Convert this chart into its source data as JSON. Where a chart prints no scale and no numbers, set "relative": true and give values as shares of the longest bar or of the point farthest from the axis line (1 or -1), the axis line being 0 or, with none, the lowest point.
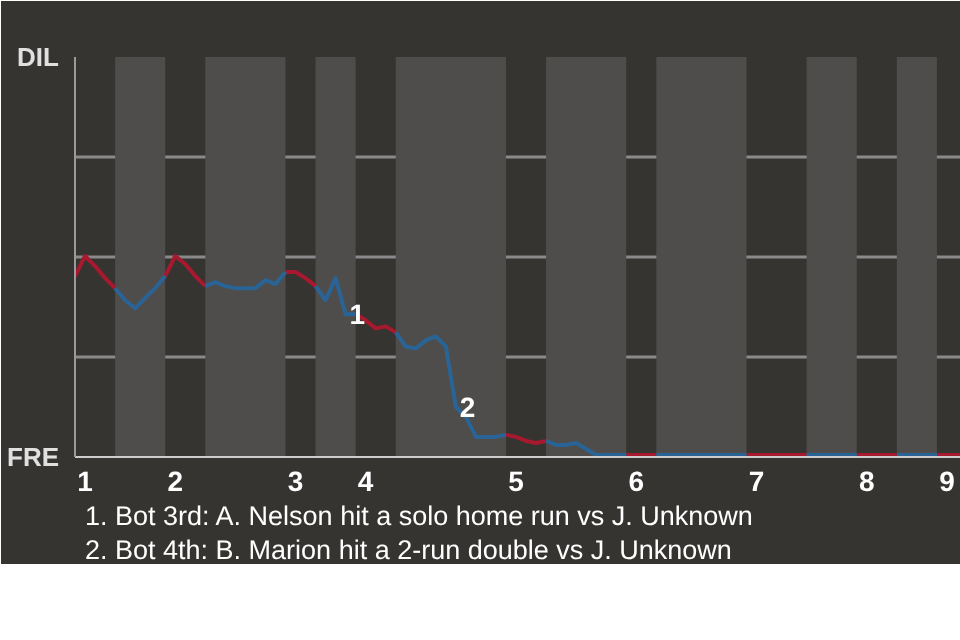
{
  "chart_data": {
    "type": "line",
    "relative": true,
    "categories": [
      null,
      "1",
      null,
      null,
      null,
      null,
      null,
      null,
      null,
      null,
      "2",
      null,
      null,
      null,
      null,
      null,
      null,
      null,
      null,
      null,
      null,
      null,
      "3",
      null,
      null,
      null,
      null,
      null,
      null,
      "4",
      null,
      null,
      null,
      null,
      null,
      null,
      null,
      null,
      null,
      null,
      null,
      null,
      null,
      null,
      "5",
      null,
      null,
      null,
      null,
      null,
      null,
      null,
      null,
      null,
      null,
      null,
      "6",
      null,
      null,
      null,
      null,
      null,
      null,
      null,
      null,
      null,
      null,
      null,
      "7",
      null,
      null,
      null,
      null,
      null,
      null,
      null,
      null,
      null,
      null,
      "8",
      null,
      null,
      null,
      null,
      null,
      null,
      null,
      "9",
      null,
      null
    ],
    "ylim": [
      0,
      1.99
    ],
    "grid": "y",
    "series": [
      {
        "color": "#a6192e",
        "values": [
          0.9,
          1.0,
          0.95,
          0.89,
          0.84,
          null,
          null,
          null,
          null,
          0.9,
          1,
          0.96,
          0.9,
          0.85,
          null,
          null,
          null,
          null,
          null,
          null,
          null,
          0.92,
          0.92,
          0.89,
          0.85,
          null,
          null,
          null,
          0.71,
          0.68,
          0.64,
          0.65,
          0.62,
          null,
          null,
          null,
          null,
          null,
          null,
          null,
          null,
          null,
          null,
          0.11,
          0.1,
          0.08,
          0.07,
          0.08,
          null,
          null,
          null,
          null,
          null,
          null,
          null,
          0.01,
          0.01,
          0.01,
          0.01,
          null,
          null,
          null,
          null,
          null,
          null,
          null,
          null,
          0.01,
          0.01,
          0.01,
          0.01,
          0.01,
          0.01,
          0.01,
          null,
          null,
          null,
          null,
          0.01,
          0.01,
          0.01,
          0.01,
          0.01,
          null,
          null,
          null,
          0.01,
          0.01,
          0.01,
          0.01
        ]
      },
      {
        "color": "#2a6496",
        "values": [
          null,
          null,
          null,
          null,
          0.84,
          0.78,
          0.74,
          0.79,
          0.84,
          0.9,
          null,
          null,
          null,
          0.85,
          0.87,
          0.85,
          0.84,
          0.84,
          0.84,
          0.88,
          0.86,
          0.92,
          null,
          null,
          0.85,
          0.78,
          0.89,
          0.71,
          0.71,
          null,
          null,
          null,
          0.62,
          0.55,
          0.54,
          0.58,
          0.6,
          0.55,
          0.25,
          0.2,
          0.1,
          0.1,
          0.1,
          0.11,
          null,
          null,
          null,
          0.08,
          0.06,
          0.06,
          0.07,
          0.04,
          0.01,
          0.01,
          0.01,
          0.01,
          null,
          null,
          0.01,
          0.01,
          0.01,
          0.01,
          0.01,
          0.01,
          0.01,
          0.01,
          0.01,
          0.01,
          null,
          null,
          null,
          null,
          null,
          0.01,
          0.01,
          0.01,
          0.01,
          0.01,
          0.01,
          null,
          null,
          null,
          0.01,
          0.01,
          0.01,
          0.01,
          0.01,
          null,
          null,
          null
        ]
      }
    ],
    "annotations": [
      "FRE",
      "DIL",
      {
        "text": "1",
        "y": 0.71
      },
      {
        "text": "2",
        "y": 0.25
      },
      "1. Bot 3rd: A. Nelson hit a solo home run vs J. Unknown",
      "2. Bot 4th: B. Marion hit a 2-run double vs J. Unknown"
    ]
  }
}
